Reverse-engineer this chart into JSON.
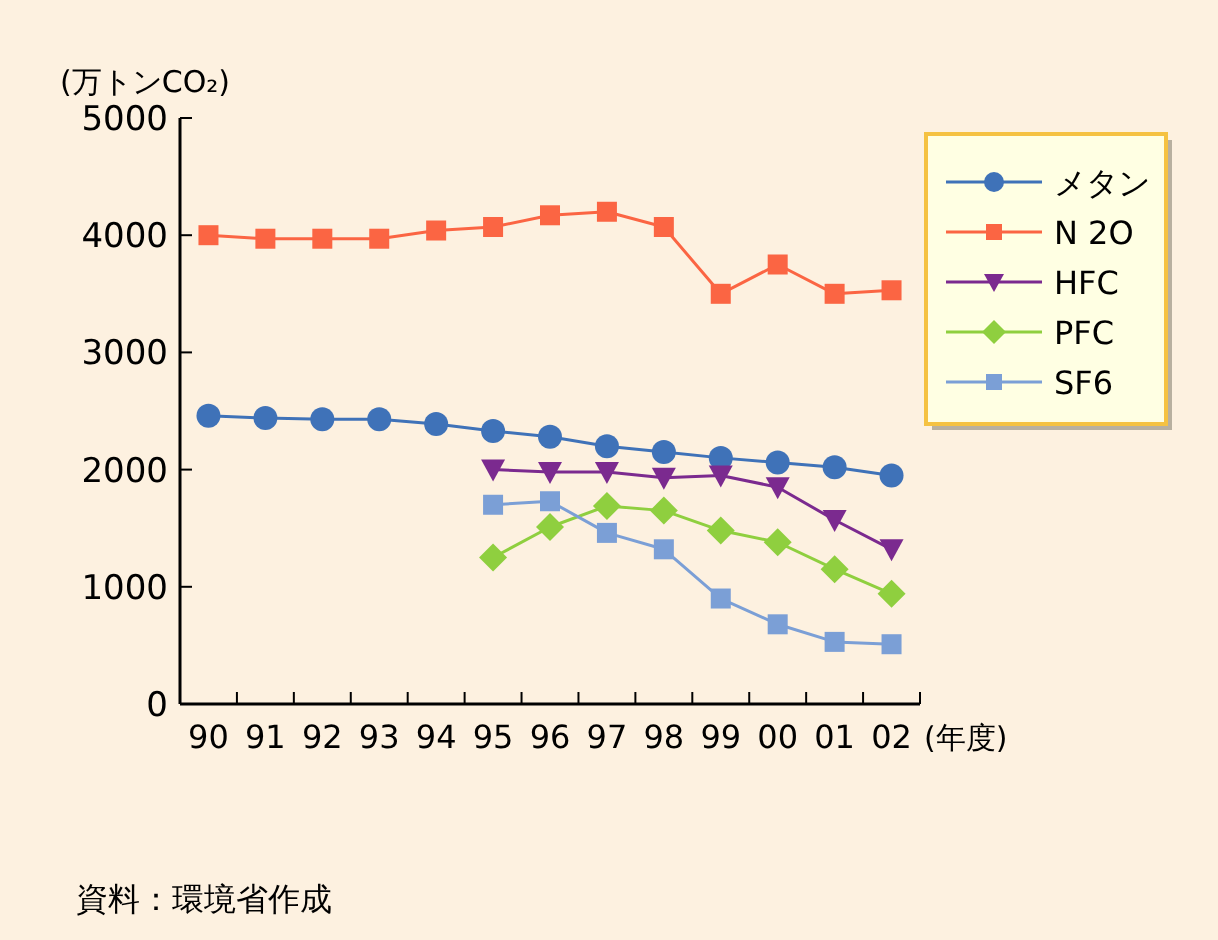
{
  "chart_data": {
    "type": "line",
    "ylabel": "(万トンCO₂)",
    "xlabel": "(年度)",
    "categories": [
      "90",
      "91",
      "92",
      "93",
      "94",
      "95",
      "96",
      "97",
      "98",
      "99",
      "00",
      "01",
      "02"
    ],
    "ylim": [
      0,
      5000
    ],
    "yticks": [
      0,
      1000,
      2000,
      3000,
      4000,
      5000
    ],
    "grid": false,
    "legend": "top right",
    "line_style": "solid",
    "series": [
      {
        "name": "メタン",
        "color": "#3f72b8",
        "marker": "circle",
        "values": [
          2460,
          2440,
          2430,
          2430,
          2390,
          2330,
          2280,
          2200,
          2150,
          2100,
          2060,
          2020,
          1950
        ]
      },
      {
        "name": "N 2O",
        "color": "#fb6543",
        "marker": "square",
        "values": [
          4000,
          3970,
          3970,
          3970,
          4040,
          4070,
          4170,
          4200,
          4070,
          3500,
          3750,
          3500,
          3530
        ]
      },
      {
        "name": "HFC",
        "color": "#7b2a8f",
        "marker": "triangle",
        "values": [
          null,
          null,
          null,
          null,
          null,
          2000,
          1980,
          1980,
          1930,
          1950,
          1850,
          1570,
          1320
        ]
      },
      {
        "name": "PFC",
        "color": "#8fcf3f",
        "marker": "diamond",
        "values": [
          null,
          null,
          null,
          null,
          null,
          1250,
          1510,
          1690,
          1650,
          1480,
          1380,
          1150,
          940
        ]
      },
      {
        "name": "SF6",
        "color": "#7b9fd6",
        "marker": "square",
        "values": [
          null,
          null,
          null,
          null,
          null,
          1700,
          1730,
          1460,
          1320,
          900,
          680,
          530,
          510
        ]
      }
    ],
    "annotations": [
      "資料：環境省作成"
    ]
  }
}
